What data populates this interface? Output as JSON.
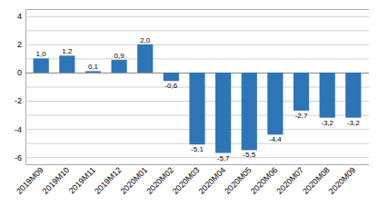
{
  "chart_data": {
    "type": "bar",
    "categories": [
      "2019M09",
      "2019M10",
      "2019M11",
      "2019M12",
      "2020M01",
      "2020M02",
      "2020M03",
      "2020M04",
      "2020M05",
      "2020M06",
      "2020M07",
      "2020M08",
      "2020M09"
    ],
    "values": [
      1.0,
      1.2,
      0.1,
      0.9,
      2.0,
      -0.6,
      -5.1,
      -5.7,
      -5.5,
      -4.4,
      -2.7,
      -3.2,
      -3.2
    ],
    "value_labels": [
      "1,0",
      "1,2",
      "0,1",
      "0,9",
      "2,0",
      "-0,6",
      "-5,1",
      "-5,7",
      "-5,5",
      "-4,4",
      "-2,7",
      "-3,2",
      "-3,2"
    ],
    "data_labels": true,
    "color": "#2e75b6",
    "ylim": [
      -6.5,
      4.5
    ],
    "yticks": [
      -6,
      {
        "value": -5,
        "label": null
      },
      -4,
      {
        "value": -3,
        "label": null
      },
      -2,
      {
        "value": -1,
        "label": null
      },
      0,
      {
        "value": 1,
        "label": null
      },
      2,
      {
        "value": 3,
        "label": null
      },
      4
    ],
    "grid": true
  }
}
